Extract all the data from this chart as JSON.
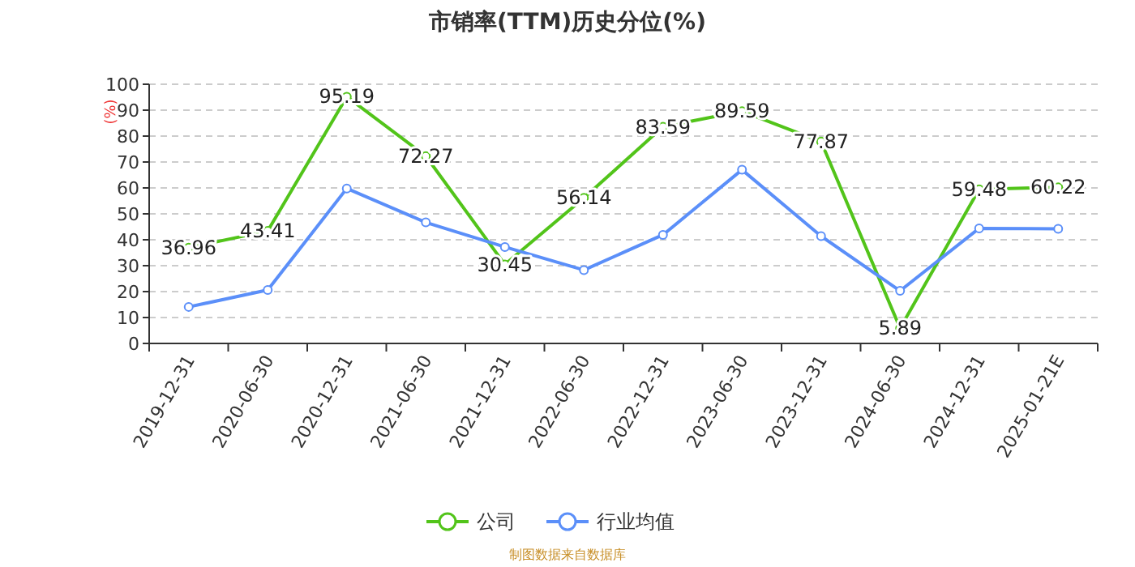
{
  "chart_data": {
    "type": "line",
    "title": "市销率(TTM)历史分位(%)",
    "ylabel": "(%)",
    "categories": [
      "2019-12-31",
      "2020-06-30",
      "2020-12-31",
      "2021-06-30",
      "2021-12-31",
      "2022-06-30",
      "2022-12-31",
      "2023-06-30",
      "2023-12-31",
      "2024-06-30",
      "2024-12-31",
      "2025-01-21E"
    ],
    "series": [
      {
        "name": "公司",
        "color": "#52c41a",
        "values": [
          36.96,
          43.41,
          95.19,
          72.27,
          30.45,
          56.14,
          83.59,
          89.59,
          77.87,
          5.89,
          59.48,
          60.22
        ],
        "value_labels": [
          "36.96",
          "43.41",
          "95.19",
          "72.27",
          "30.45",
          "56.14",
          "83.59",
          "89.59",
          "77.87",
          "5.89",
          "59.48",
          "60.22"
        ]
      },
      {
        "name": "行业均值",
        "color": "#5b8ff9",
        "values": [
          14.1,
          20.6,
          59.8,
          46.7,
          37.2,
          28.3,
          41.9,
          67.0,
          41.4,
          20.3,
          44.4,
          44.2
        ]
      }
    ],
    "ylim": [
      0,
      100
    ],
    "yticks": [
      0,
      10,
      20,
      30,
      40,
      50,
      60,
      70,
      80,
      90,
      100
    ],
    "grid": "y",
    "legend": "bottom",
    "marker": "circle",
    "line_style": "solid",
    "annotations": [
      "制图数据来自数据库"
    ]
  }
}
